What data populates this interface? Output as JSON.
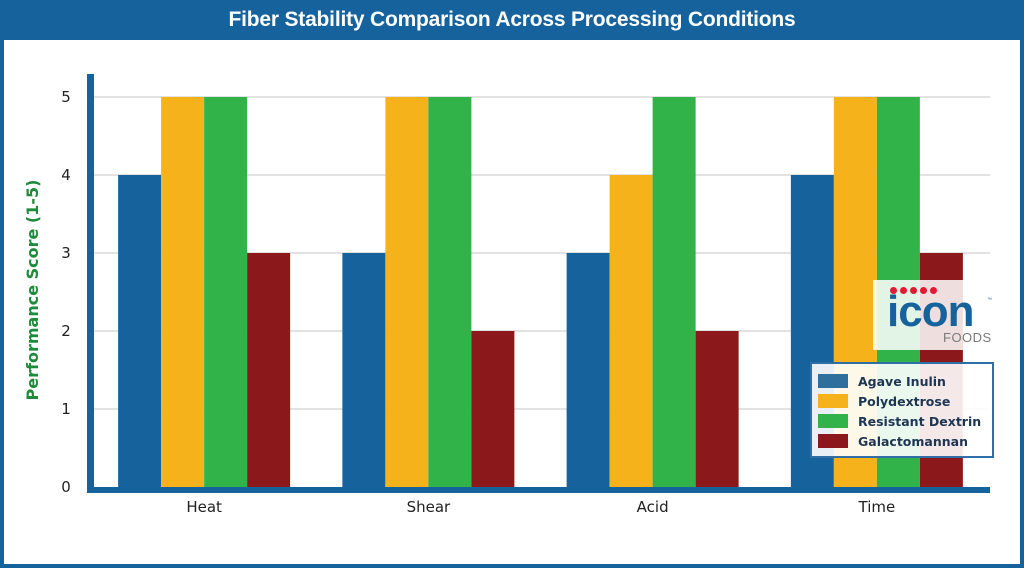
{
  "chart_data": {
    "type": "bar",
    "title": "Fiber Stability Comparison Across Processing Conditions",
    "xlabel": "",
    "ylabel": "Performance Score (1-5)",
    "ylim": [
      0,
      5.3
    ],
    "yticks": [
      0,
      1,
      2,
      3,
      4,
      5
    ],
    "grid": true,
    "legend_position": "bottom-right",
    "categories": [
      "Heat",
      "Shear",
      "Acid",
      "Time"
    ],
    "series": [
      {
        "name": "Agave Inulin",
        "color": "#16629c",
        "values": [
          4,
          3,
          3,
          4
        ]
      },
      {
        "name": "Polydextrose",
        "color": "#f5b21a",
        "values": [
          5,
          5,
          4,
          5
        ]
      },
      {
        "name": "Resistant Dextrin",
        "color": "#32b34a",
        "values": [
          5,
          5,
          5,
          5
        ]
      },
      {
        "name": "Galactomannan",
        "color": "#8b181b",
        "values": [
          3,
          2,
          2,
          3
        ]
      }
    ]
  },
  "logo": {
    "word": "icon",
    "subtext": "FOODS",
    "tm": "™"
  },
  "colors": {
    "frame": "#16629c",
    "axis": "#16629c",
    "ylabel": "#1f8a3a",
    "grid": "#d9d9d9"
  }
}
